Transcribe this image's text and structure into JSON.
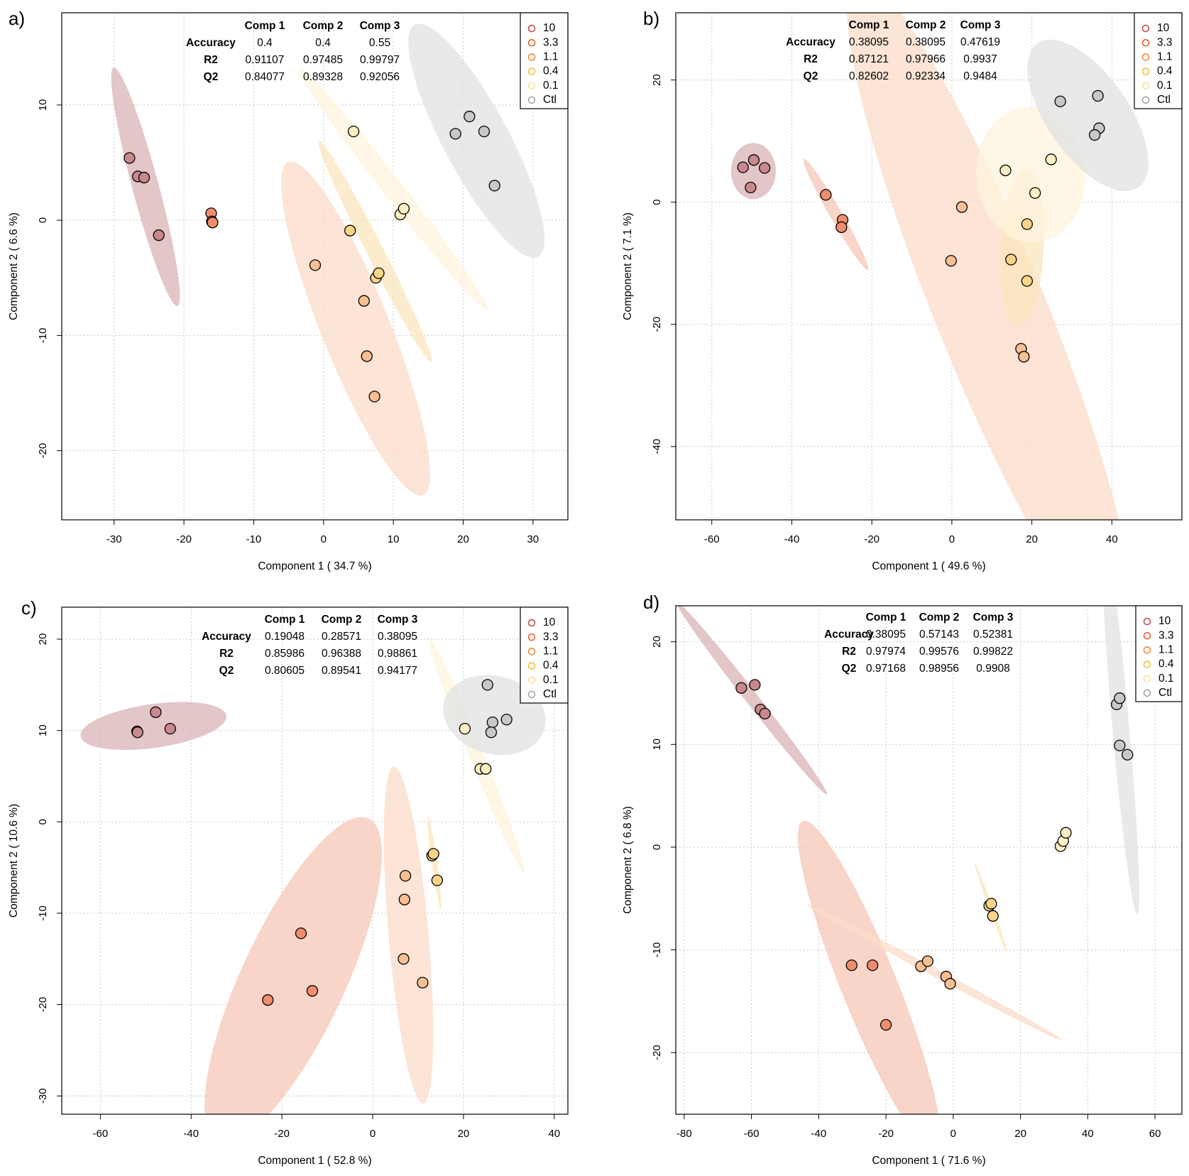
{
  "colors": {
    "10": "#c9898c",
    "3.3": "#ef8d6e",
    "1.1": "#f8bf93",
    "0.4": "#fbd48a",
    "0.1": "#fdefc3",
    "Ctl": "#c8c8c8",
    "legend_10": "#c0504d",
    "legend_3.3": "#e8602c",
    "legend_1.1": "#f28a3a",
    "legend_0.4": "#f4bf3a",
    "legend_0.1": "#f8e29a",
    "legend_Ctl": "#a6a6a6",
    "ellipse_10": "#d9b3b6",
    "ellipse_3.3": "#f6c7b6",
    "ellipse_1.1": "#fbdcc8",
    "ellipse_0.4": "#fbe6bd",
    "ellipse_0.1": "#fdf4dc",
    "ellipse_Ctl": "#e1e1e1",
    "grid": "#c8c8c8",
    "axis": "#000000"
  },
  "chart_data": [
    {
      "panel_label": "a)",
      "type": "scatter",
      "xlabel": "Component 1 ( 34.7 %)",
      "ylabel": "Component 2 ( 6.6 %)",
      "xlim": [
        -37.5,
        35
      ],
      "ylim": [
        -26,
        18
      ],
      "xticks": [
        -30,
        -20,
        -10,
        0,
        10,
        20,
        30
      ],
      "yticks": [
        -20,
        -10,
        0,
        10
      ],
      "grid": true,
      "legend_position": "top-right",
      "legend": [
        "10",
        "3.3",
        "1.1",
        "0.4",
        "0.1",
        "Ctl"
      ],
      "stats": {
        "header": [
          "Comp 1",
          "Comp 2",
          "Comp 3"
        ],
        "rows": [
          {
            "label": "Accuracy",
            "values": [
              "0.4",
              "0.4",
              "0.55"
            ]
          },
          {
            "label": "R2",
            "values": [
              "0.91107",
              "0.97485",
              "0.99797"
            ]
          },
          {
            "label": "Q2",
            "values": [
              "0.84077",
              "0.89328",
              "0.92056"
            ]
          }
        ]
      },
      "series": [
        {
          "name": "10",
          "points": [
            [
              -27.8,
              5.4
            ],
            [
              -26.6,
              3.8
            ],
            [
              -25.7,
              3.7
            ],
            [
              -23.6,
              -1.3
            ]
          ],
          "ellipse": {
            "cx": -25.5,
            "cy": 2.9,
            "rx": 1.9,
            "ry": 10.7,
            "angle": -15
          }
        },
        {
          "name": "3.3",
          "points": [
            [
              -16.1,
              0.6
            ],
            [
              -16.0,
              -0.1
            ],
            [
              -15.9,
              -0.2
            ]
          ],
          "ellipse": null
        },
        {
          "name": "1.1",
          "points": [
            [
              -1.2,
              -3.9
            ],
            [
              5.8,
              -7.0
            ],
            [
              6.2,
              -11.8
            ],
            [
              7.3,
              -15.3
            ]
          ],
          "ellipse": {
            "cx": 4.6,
            "cy": -9.4,
            "rx": 4.9,
            "ry": 15.6,
            "angle": -22
          }
        },
        {
          "name": "0.4",
          "points": [
            [
              3.8,
              -0.9
            ],
            [
              7.5,
              -5.0
            ],
            [
              7.9,
              -4.6
            ]
          ],
          "ellipse": {
            "cx": 7.4,
            "cy": -2.7,
            "rx": 1.2,
            "ry": 10.8,
            "angle": -27
          }
        },
        {
          "name": "0.1",
          "points": [
            [
              4.3,
              7.7
            ],
            [
              11.0,
              0.5
            ],
            [
              11.5,
              1.0
            ]
          ],
          "ellipse": {
            "cx": 10.0,
            "cy": 2.7,
            "rx": 1.4,
            "ry": 13.3,
            "angle": -38
          }
        },
        {
          "name": "Ctl",
          "points": [
            [
              18.9,
              7.5
            ],
            [
              20.9,
              9.0
            ],
            [
              23.0,
              7.7
            ],
            [
              24.5,
              3.0
            ]
          ],
          "ellipse": {
            "cx": 21.9,
            "cy": 6.9,
            "rx": 4.7,
            "ry": 11.4,
            "angle": -28
          }
        }
      ]
    },
    {
      "panel_label": "b)",
      "type": "scatter",
      "xlabel": "Component 1 ( 49.6 %)",
      "ylabel": "Component 2 ( 7.1 %)",
      "xlim": [
        -69,
        57.5
      ],
      "ylim": [
        -52,
        31
      ],
      "xticks": [
        -60,
        -40,
        -20,
        0,
        20,
        40
      ],
      "yticks": [
        -40,
        -20,
        0,
        20
      ],
      "grid": true,
      "legend_position": "top-right",
      "legend": [
        "10",
        "3.3",
        "1.1",
        "0.4",
        "0.1",
        "Ctl"
      ],
      "stats": {
        "header": [
          "Comp 1",
          "Comp 2",
          "Comp 3"
        ],
        "rows": [
          {
            "label": "Accuracy",
            "values": [
              "0.38095",
              "0.38095",
              "0.47619"
            ]
          },
          {
            "label": "R2",
            "values": [
              "0.87121",
              "0.97966",
              "0.9937"
            ]
          },
          {
            "label": "Q2",
            "values": [
              "0.82602",
              "0.92334",
              "0.9484"
            ]
          }
        ]
      },
      "series": [
        {
          "name": "10",
          "points": [
            [
              -52.2,
              5.7
            ],
            [
              -49.5,
              6.9
            ],
            [
              -50.3,
              2.4
            ],
            [
              -46.8,
              5.6
            ]
          ],
          "ellipse": {
            "cx": -49.6,
            "cy": 5.1,
            "rx": 5.6,
            "ry": 4.6,
            "angle": 0
          }
        },
        {
          "name": "3.3",
          "points": [
            [
              -31.5,
              1.2
            ],
            [
              -27.3,
              -2.9
            ],
            [
              -27.6,
              -4.1
            ]
          ],
          "ellipse": {
            "cx": -29.0,
            "cy": -2.0,
            "rx": 1.5,
            "ry": 10.5,
            "angle": -30
          }
        },
        {
          "name": "1.1",
          "points": [
            [
              2.5,
              -0.8
            ],
            [
              -0.2,
              -9.6
            ],
            [
              17.3,
              -24.0
            ],
            [
              18.0,
              -25.3
            ]
          ],
          "ellipse": {
            "cx": 9.6,
            "cy": -17.7,
            "rx": 13.9,
            "ry": 58.5,
            "angle": -22
          }
        },
        {
          "name": "0.4",
          "points": [
            [
              18.8,
              -3.6
            ],
            [
              14.8,
              -9.4
            ],
            [
              18.8,
              -12.9
            ]
          ],
          "ellipse": {
            "cx": 17.6,
            "cy": -7.5,
            "rx": 5.4,
            "ry": 12.9,
            "angle": 3
          }
        },
        {
          "name": "0.1",
          "points": [
            [
              13.4,
              5.2
            ],
            [
              24.8,
              7.0
            ],
            [
              20.8,
              1.5
            ]
          ],
          "ellipse": {
            "cx": 19.7,
            "cy": 4.5,
            "rx": 13.6,
            "ry": 11.1,
            "angle": -5
          }
        },
        {
          "name": "Ctl",
          "points": [
            [
              27.1,
              16.5
            ],
            [
              36.5,
              17.4
            ],
            [
              36.8,
              12.1
            ],
            [
              35.7,
              11.0
            ]
          ],
          "ellipse": {
            "cx": 34.0,
            "cy": 14.2,
            "rx": 10.2,
            "ry": 14.4,
            "angle": -35
          }
        }
      ]
    },
    {
      "panel_label": "c)",
      "type": "scatter",
      "xlabel": "Component 1 ( 52.8 %)",
      "ylabel": "Component 2 ( 10.6 %)",
      "xlim": [
        -68.5,
        43
      ],
      "ylim": [
        -32,
        23.5
      ],
      "xticks": [
        -60,
        -40,
        -20,
        0,
        20,
        40
      ],
      "yticks": [
        -30,
        -20,
        -10,
        0,
        10,
        20
      ],
      "grid": true,
      "legend_position": "top-right",
      "legend": [
        "10",
        "3.3",
        "1.1",
        "0.4",
        "0.1",
        "Ctl"
      ],
      "stats": {
        "header": [
          "Comp 1",
          "Comp 2",
          "Comp 3"
        ],
        "rows": [
          {
            "label": "Accuracy",
            "values": [
              "0.19048",
              "0.28571",
              "0.38095"
            ]
          },
          {
            "label": "R2",
            "values": [
              "0.85986",
              "0.96388",
              "0.98861"
            ]
          },
          {
            "label": "Q2",
            "values": [
              "0.80605",
              "0.89541",
              "0.94177"
            ]
          }
        ]
      },
      "series": [
        {
          "name": "10",
          "points": [
            [
              -51.9,
              9.9
            ],
            [
              -51.8,
              9.8
            ],
            [
              -47.8,
              12.0
            ],
            [
              -44.6,
              10.2
            ]
          ],
          "ellipse": {
            "cx": -48.3,
            "cy": 10.5,
            "rx": 16.2,
            "ry": 2.4,
            "angle": -8
          }
        },
        {
          "name": "3.3",
          "points": [
            [
              -15.8,
              -12.2
            ],
            [
              -13.3,
              -18.5
            ],
            [
              -23.1,
              -19.5
            ]
          ],
          "ellipse": {
            "cx": -17.5,
            "cy": -17.3,
            "rx": 11.4,
            "ry": 19.5,
            "angle": 25
          }
        },
        {
          "name": "1.1",
          "points": [
            [
              7.2,
              -5.9
            ],
            [
              7.0,
              -8.5
            ],
            [
              6.8,
              -15.0
            ],
            [
              11.0,
              -17.6
            ]
          ],
          "ellipse": {
            "cx": 7.9,
            "cy": -12.4,
            "rx": 4.4,
            "ry": 18.5,
            "angle": -5
          }
        },
        {
          "name": "0.4",
          "points": [
            [
              13.1,
              -3.7
            ],
            [
              13.4,
              -3.5
            ],
            [
              14.2,
              -6.4
            ]
          ],
          "ellipse": {
            "cx": 13.6,
            "cy": -4.5,
            "rx": 0.6,
            "ry": 5.1,
            "angle": -8
          }
        },
        {
          "name": "0.1",
          "points": [
            [
              20.3,
              10.2
            ],
            [
              23.7,
              5.8
            ],
            [
              24.9,
              5.8
            ]
          ],
          "ellipse": {
            "cx": 22.9,
            "cy": 7.3,
            "rx": 1.6,
            "ry": 13.8,
            "angle": -22
          }
        },
        {
          "name": "Ctl",
          "points": [
            [
              25.3,
              15.0
            ],
            [
              26.4,
              10.9
            ],
            [
              26.1,
              9.8
            ],
            [
              29.5,
              11.2
            ]
          ],
          "ellipse": {
            "cx": 26.8,
            "cy": 11.7,
            "rx": 8.6,
            "ry": 5.7,
            "angle": -75
          }
        }
      ]
    },
    {
      "panel_label": "d)",
      "type": "scatter",
      "xlabel": "Component 1 ( 71.6 %)",
      "ylabel": "Component 2 ( 6.8 %)",
      "xlim": [
        -82.5,
        68
      ],
      "ylim": [
        -26,
        23.5
      ],
      "xticks": [
        -80,
        -60,
        -40,
        -20,
        0,
        20,
        40,
        60
      ],
      "yticks": [
        -20,
        -10,
        0,
        10,
        20
      ],
      "grid": true,
      "legend_position": "top-right",
      "legend": [
        "10",
        "3.3",
        "1.1",
        "0.4",
        "0.1",
        "Ctl"
      ],
      "stats": {
        "header": [
          "Comp 1",
          "Comp 2",
          "Comp 3"
        ],
        "rows": [
          {
            "label": "Accuracy",
            "values": [
              "0.38095",
              "0.57143",
              "0.52381"
            ]
          },
          {
            "label": "R2",
            "values": [
              "0.97974",
              "0.99576",
              "0.99822"
            ]
          },
          {
            "label": "Q2",
            "values": [
              "0.97168",
              "0.98956",
              "0.9908"
            ]
          }
        ]
      },
      "series": [
        {
          "name": "10",
          "points": [
            [
              -63.0,
              15.5
            ],
            [
              -59.0,
              15.8
            ],
            [
              -57.3,
              13.4
            ],
            [
              -56.0,
              13.0
            ]
          ],
          "ellipse": {
            "cx": -59.9,
            "cy": 14.5,
            "rx": 1.9,
            "ry": 11.9,
            "angle": -38
          }
        },
        {
          "name": "3.3",
          "points": [
            [
              -30.2,
              -11.5
            ],
            [
              -24.0,
              -11.5
            ],
            [
              -20.0,
              -17.3
            ]
          ],
          "ellipse": {
            "cx": -25.0,
            "cy": -13.5,
            "rx": 8.3,
            "ry": 17.3,
            "angle": -22
          }
        },
        {
          "name": "1.1",
          "points": [
            [
              -9.6,
              -11.6
            ],
            [
              -7.6,
              -11.1
            ],
            [
              -2.1,
              -12.6
            ],
            [
              -0.9,
              -13.3
            ]
          ],
          "ellipse": {
            "cx": -5.5,
            "cy": -12.2,
            "rx": 1.2,
            "ry": 14.1,
            "angle": -62
          }
        },
        {
          "name": "0.4",
          "points": [
            [
              10.7,
              -5.7
            ],
            [
              11.3,
              -5.5
            ],
            [
              11.8,
              -6.7
            ]
          ],
          "ellipse": {
            "cx": 11.2,
            "cy": -5.9,
            "rx": 0.6,
            "ry": 4.7,
            "angle": -20
          }
        },
        {
          "name": "0.1",
          "points": [
            [
              31.9,
              0.1
            ],
            [
              32.7,
              0.6
            ],
            [
              33.5,
              1.4
            ]
          ],
          "ellipse": null
        },
        {
          "name": "Ctl",
          "points": [
            [
              48.6,
              13.9
            ],
            [
              49.5,
              14.5
            ],
            [
              49.5,
              9.9
            ],
            [
              51.8,
              9.0
            ]
          ],
          "ellipse": {
            "cx": 49.8,
            "cy": 11.8,
            "rx": 2.5,
            "ry": 18.4,
            "angle": -5
          }
        }
      ]
    }
  ]
}
